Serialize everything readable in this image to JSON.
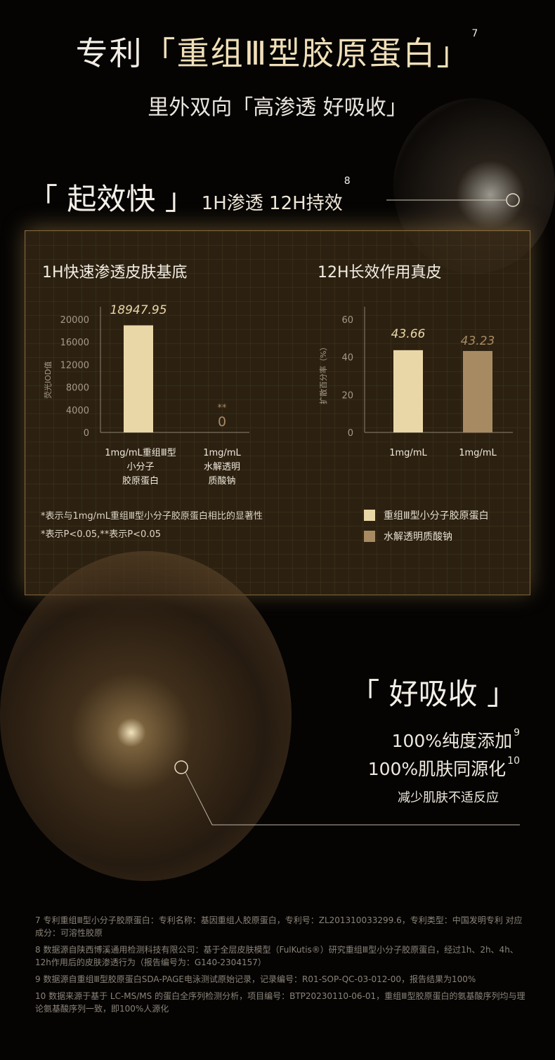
{
  "header": {
    "title_prefix": "专利",
    "title_highlight": "「重组Ⅲ型胶原蛋白」",
    "title_ref": "7",
    "subtitle": "里外双向「高渗透 好吸收」"
  },
  "section1": {
    "heading": "「 起效快 」",
    "tagline": "1H渗透  12H持效",
    "ref": "8"
  },
  "colors": {
    "accent_light": "#ead7a8",
    "accent_dark": "#a88a62",
    "background": "#050403",
    "panel": "#3c2c18"
  },
  "chart_data": [
    {
      "type": "bar",
      "title": "1H快速渗透皮肤基底",
      "ylabel": "荧光IOD值",
      "ylim": [
        0,
        20000
      ],
      "yticks": [
        0,
        4000,
        8000,
        12000,
        16000,
        20000
      ],
      "categories": [
        "1mg/mL重组Ⅲ型\n小分子\n胶原蛋白",
        "1mg/mL\n水解透明\n质酸钠"
      ],
      "values": [
        18947.95,
        0
      ],
      "data_labels": [
        "18947.95",
        "0"
      ],
      "annotations": [
        "",
        "**"
      ],
      "grid": false
    },
    {
      "type": "bar",
      "title": "12H长效作用真皮",
      "ylabel": "扩散百分率（%）",
      "ylim": [
        0,
        60
      ],
      "yticks": [
        0,
        20,
        40,
        60
      ],
      "categories": [
        "1mg/mL",
        "1mg/mL"
      ],
      "values": [
        43.66,
        43.23
      ],
      "data_labels": [
        "43.66",
        "43.23"
      ],
      "legend": [
        "重组Ⅲ型小分子胶原蛋白",
        "水解透明质酸钠"
      ],
      "legend_placement": "bottom",
      "grid": false
    }
  ],
  "chart_notes": [
    "*表示与1mg/mL重组Ⅲ型小分子胶原蛋白相比的显著性",
    "*表示P<0.05,**表示P<0.05"
  ],
  "section2": {
    "heading": "「 好吸收 」",
    "line1": "100%纯度添加",
    "ref1": "9",
    "line2": "100%肌肤同源化",
    "ref2": "10",
    "line3": "减少肌肤不适反应"
  },
  "footnotes": [
    "7 专利重组Ⅲ型小分子胶原蛋白：专利名称：基因重组人胶原蛋白，专利号：ZL201310033299.6，专利类型：中国发明专利 对应成分：可溶性胶原",
    "8 数据源自陕西博溪通用检测科技有限公司：基于全层皮肤模型（FulKutis®）研究重组Ⅲ型小分子胶原蛋白，经过1h、2h、4h、12h作用后的皮肤渗透行为（报告编号为：G140-2304157）",
    "9 数据源自重组Ⅲ型胶原蛋白SDA-PAGE电泳测试原始记录，记录编号：R01-SOP-QC-03-012-00，报告结果为100%",
    "10 数据来源于基于 LC-MS/MS 的蛋白全序列检测分析，项目编号：BTP20230110-06-01，重组Ⅲ型胶原蛋白的氨基酸序列均与理论氨基酸序列一致，即100%人源化"
  ]
}
